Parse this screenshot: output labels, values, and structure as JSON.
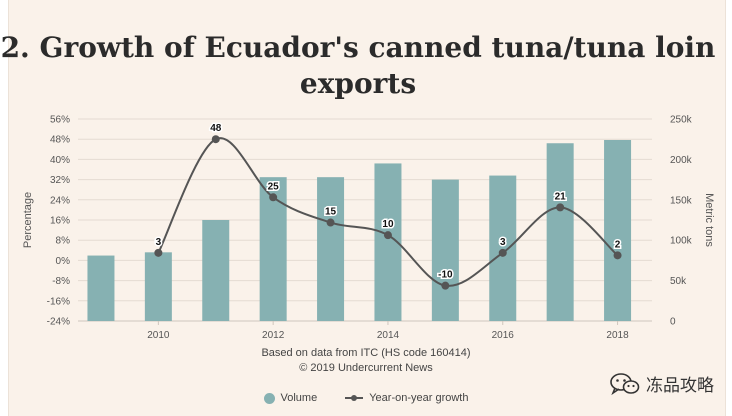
{
  "chart_data": {
    "type": "bar",
    "title": "2. Growth of Ecuador's canned tuna/tuna loin exports",
    "x": [
      2009,
      2010,
      2011,
      2012,
      2013,
      2014,
      2015,
      2016,
      2017,
      2018
    ],
    "x_tick_labels": [
      "2010",
      "2012",
      "2014",
      "2016",
      "2018"
    ],
    "series": [
      {
        "name": "Volume",
        "type": "bar",
        "axis": "right",
        "color": "#86b1b2",
        "values": [
          81000,
          85000,
          125000,
          178000,
          178000,
          195000,
          175000,
          180000,
          220000,
          224000
        ]
      },
      {
        "name": "Year-on-year growth",
        "type": "line",
        "axis": "left",
        "color": "#555555",
        "x": [
          2010,
          2011,
          2012,
          2013,
          2014,
          2015,
          2016,
          2017,
          2018
        ],
        "values": [
          3,
          48,
          25,
          15,
          10,
          -10,
          3,
          21,
          2
        ],
        "labels": [
          "3",
          "48",
          "25",
          "15",
          "10",
          "-10",
          "3",
          "21",
          "2"
        ]
      }
    ],
    "ylabel": "Percentage",
    "ylabel_right": "Metric tons",
    "ylim": [
      -24,
      56
    ],
    "ylim_right": [
      0,
      250000
    ],
    "y_ticks": [
      "-24%",
      "-16%",
      "-8%",
      "0%",
      "8%",
      "16%",
      "24%",
      "32%",
      "40%",
      "48%",
      "56%"
    ],
    "y_right_ticks": [
      "0",
      "50k",
      "100k",
      "150k",
      "200k",
      "250k"
    ],
    "grid": true,
    "legend_position": "bottom"
  },
  "source": {
    "line1": "Based on data from ITC (HS code 160414)",
    "line2": "© 2019 Undercurrent News"
  },
  "watermark": {
    "text": "冻品攻略",
    "icon": "wechat-icon"
  }
}
